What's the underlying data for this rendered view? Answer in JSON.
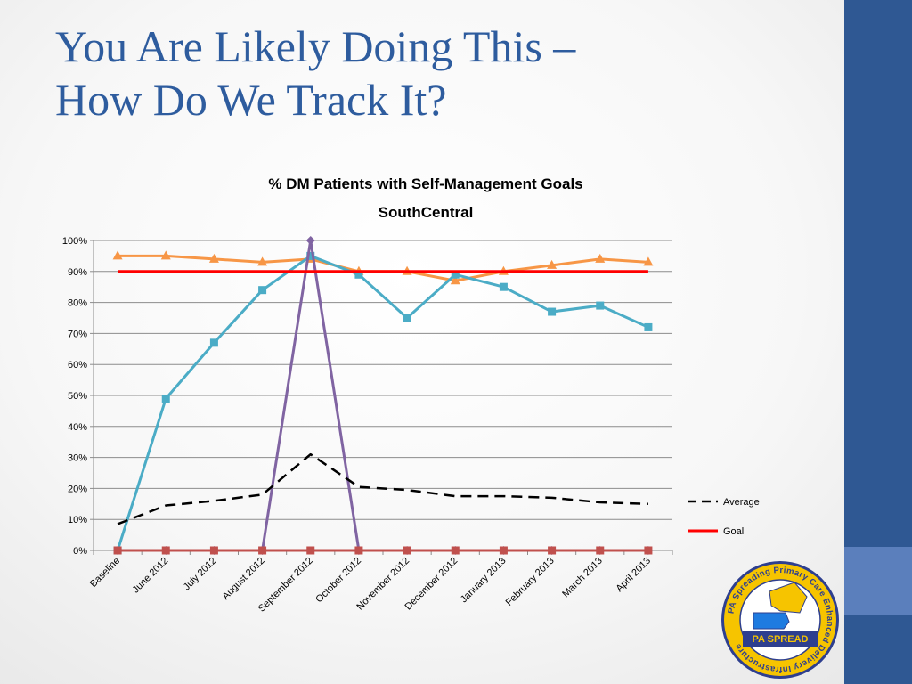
{
  "slide": {
    "title_line1": "You Are Likely Doing This –",
    "title_line2": "How Do We Track It?"
  },
  "colors": {
    "title": "#2e5c9e",
    "sidebar": "#2f5893",
    "sidebar_accent": "#5b7fbc"
  },
  "logo": {
    "ring_text": "PA Spreading Primary Care Enhanced Delivery Infrastructure",
    "label": "PA SPREAD"
  },
  "chart_data": {
    "type": "line",
    "title": "% DM Patients with Self-Management Goals",
    "subtitle": "SouthCentral",
    "categories": [
      "Baseline",
      "June 2012",
      "July 2012",
      "August 2012",
      "September 2012",
      "October 2012",
      "November 2012",
      "December 2012",
      "January 2013",
      "February 2013",
      "March 2013",
      "April 2013"
    ],
    "y_ticks": [
      "0%",
      "10%",
      "20%",
      "30%",
      "40%",
      "50%",
      "60%",
      "70%",
      "80%",
      "90%",
      "100%"
    ],
    "ylim": [
      0,
      100
    ],
    "grid": true,
    "legend_position": "right",
    "series": [
      {
        "name": "",
        "color": "#f79646",
        "marker": "triangle",
        "dash": false,
        "values": [
          95,
          95,
          94,
          93,
          94,
          90,
          90,
          87,
          90,
          92,
          94,
          93
        ]
      },
      {
        "name": "",
        "color": "#4bacc6",
        "marker": "square",
        "dash": false,
        "values": [
          0,
          49,
          67,
          84,
          95,
          89,
          75,
          89,
          85,
          77,
          79,
          72
        ]
      },
      {
        "name": "",
        "color": "#8064a2",
        "marker": "diamond",
        "dash": false,
        "values": [
          0,
          0,
          0,
          0,
          100,
          0,
          0,
          0,
          0,
          0,
          0,
          0
        ]
      },
      {
        "name": "",
        "color": "#c0504d",
        "marker": "square",
        "dash": false,
        "values": [
          0,
          0,
          0,
          0,
          0,
          0,
          0,
          0,
          0,
          0,
          0,
          0
        ]
      },
      {
        "name": "Average",
        "color": "#000000",
        "marker": "none",
        "dash": true,
        "values": [
          8.5,
          14.5,
          16,
          18,
          31,
          20.5,
          19.5,
          17.5,
          17.5,
          17,
          15.5,
          15
        ]
      },
      {
        "name": "Goal",
        "color": "#ff0000",
        "marker": "none",
        "dash": false,
        "values": [
          90,
          90,
          90,
          90,
          90,
          90,
          90,
          90,
          90,
          90,
          90,
          90
        ]
      }
    ]
  }
}
